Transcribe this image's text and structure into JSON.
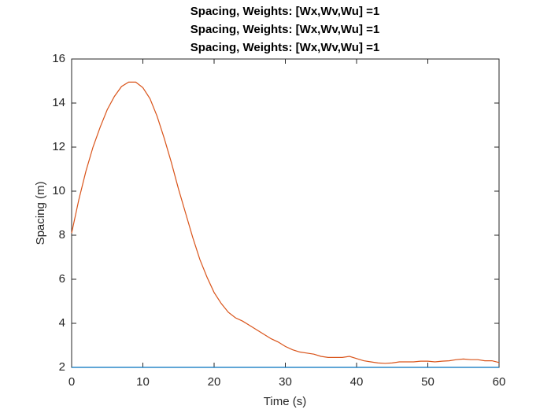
{
  "chart_data": {
    "type": "line",
    "title": [
      "Spacing, Weights: [Wx,Wv,Wu] =1",
      "Spacing, Weights: [Wx,Wv,Wu] =1",
      "Spacing, Weights: [Wx,Wv,Wu] =1"
    ],
    "xlabel": "Time (s)",
    "ylabel": "Spacing (m)",
    "x": [
      0,
      1,
      2,
      3,
      4,
      5,
      6,
      7,
      8,
      9,
      10,
      11,
      12,
      13,
      14,
      15,
      16,
      17,
      18,
      19,
      20,
      21,
      22,
      23,
      24,
      25,
      26,
      27,
      28,
      29,
      30,
      31,
      32,
      33,
      34,
      35,
      36,
      37,
      38,
      39,
      40,
      41,
      42,
      43,
      44,
      45,
      46,
      47,
      48,
      49,
      50,
      51,
      52,
      53,
      54,
      55,
      56,
      57,
      58,
      59,
      60
    ],
    "series": [
      {
        "color": "#d95319",
        "values": [
          8.1,
          9.6,
          10.9,
          12.0,
          12.9,
          13.7,
          14.3,
          14.75,
          14.95,
          14.95,
          14.7,
          14.2,
          13.4,
          12.4,
          11.3,
          10.1,
          9.0,
          7.9,
          6.9,
          6.1,
          5.4,
          4.9,
          4.5,
          4.25,
          4.1,
          3.9,
          3.7,
          3.5,
          3.3,
          3.15,
          2.95,
          2.8,
          2.7,
          2.65,
          2.6,
          2.5,
          2.45,
          2.45,
          2.45,
          2.5,
          2.4,
          2.3,
          2.25,
          2.2,
          2.18,
          2.2,
          2.25,
          2.25,
          2.25,
          2.28,
          2.28,
          2.25,
          2.28,
          2.3,
          2.35,
          2.38,
          2.35,
          2.35,
          2.3,
          2.3,
          2.22
        ]
      },
      {
        "color": "#0072bd",
        "values": [
          2,
          2,
          2,
          2,
          2,
          2,
          2,
          2,
          2,
          2,
          2,
          2,
          2,
          2,
          2,
          2,
          2,
          2,
          2,
          2,
          2,
          2,
          2,
          2,
          2,
          2,
          2,
          2,
          2,
          2,
          2,
          2,
          2,
          2,
          2,
          2,
          2,
          2,
          2,
          2,
          2,
          2,
          2,
          2,
          2,
          2,
          2,
          2,
          2,
          2,
          2,
          2,
          2,
          2,
          2,
          2,
          2,
          2,
          2,
          2,
          2
        ]
      }
    ],
    "xlim": [
      0,
      60
    ],
    "xticks": [
      0,
      10,
      20,
      30,
      40,
      50,
      60
    ],
    "ylim": [
      2,
      16
    ],
    "yticks": [
      2,
      4,
      6,
      8,
      10,
      12,
      14,
      16
    ],
    "grid": false
  }
}
